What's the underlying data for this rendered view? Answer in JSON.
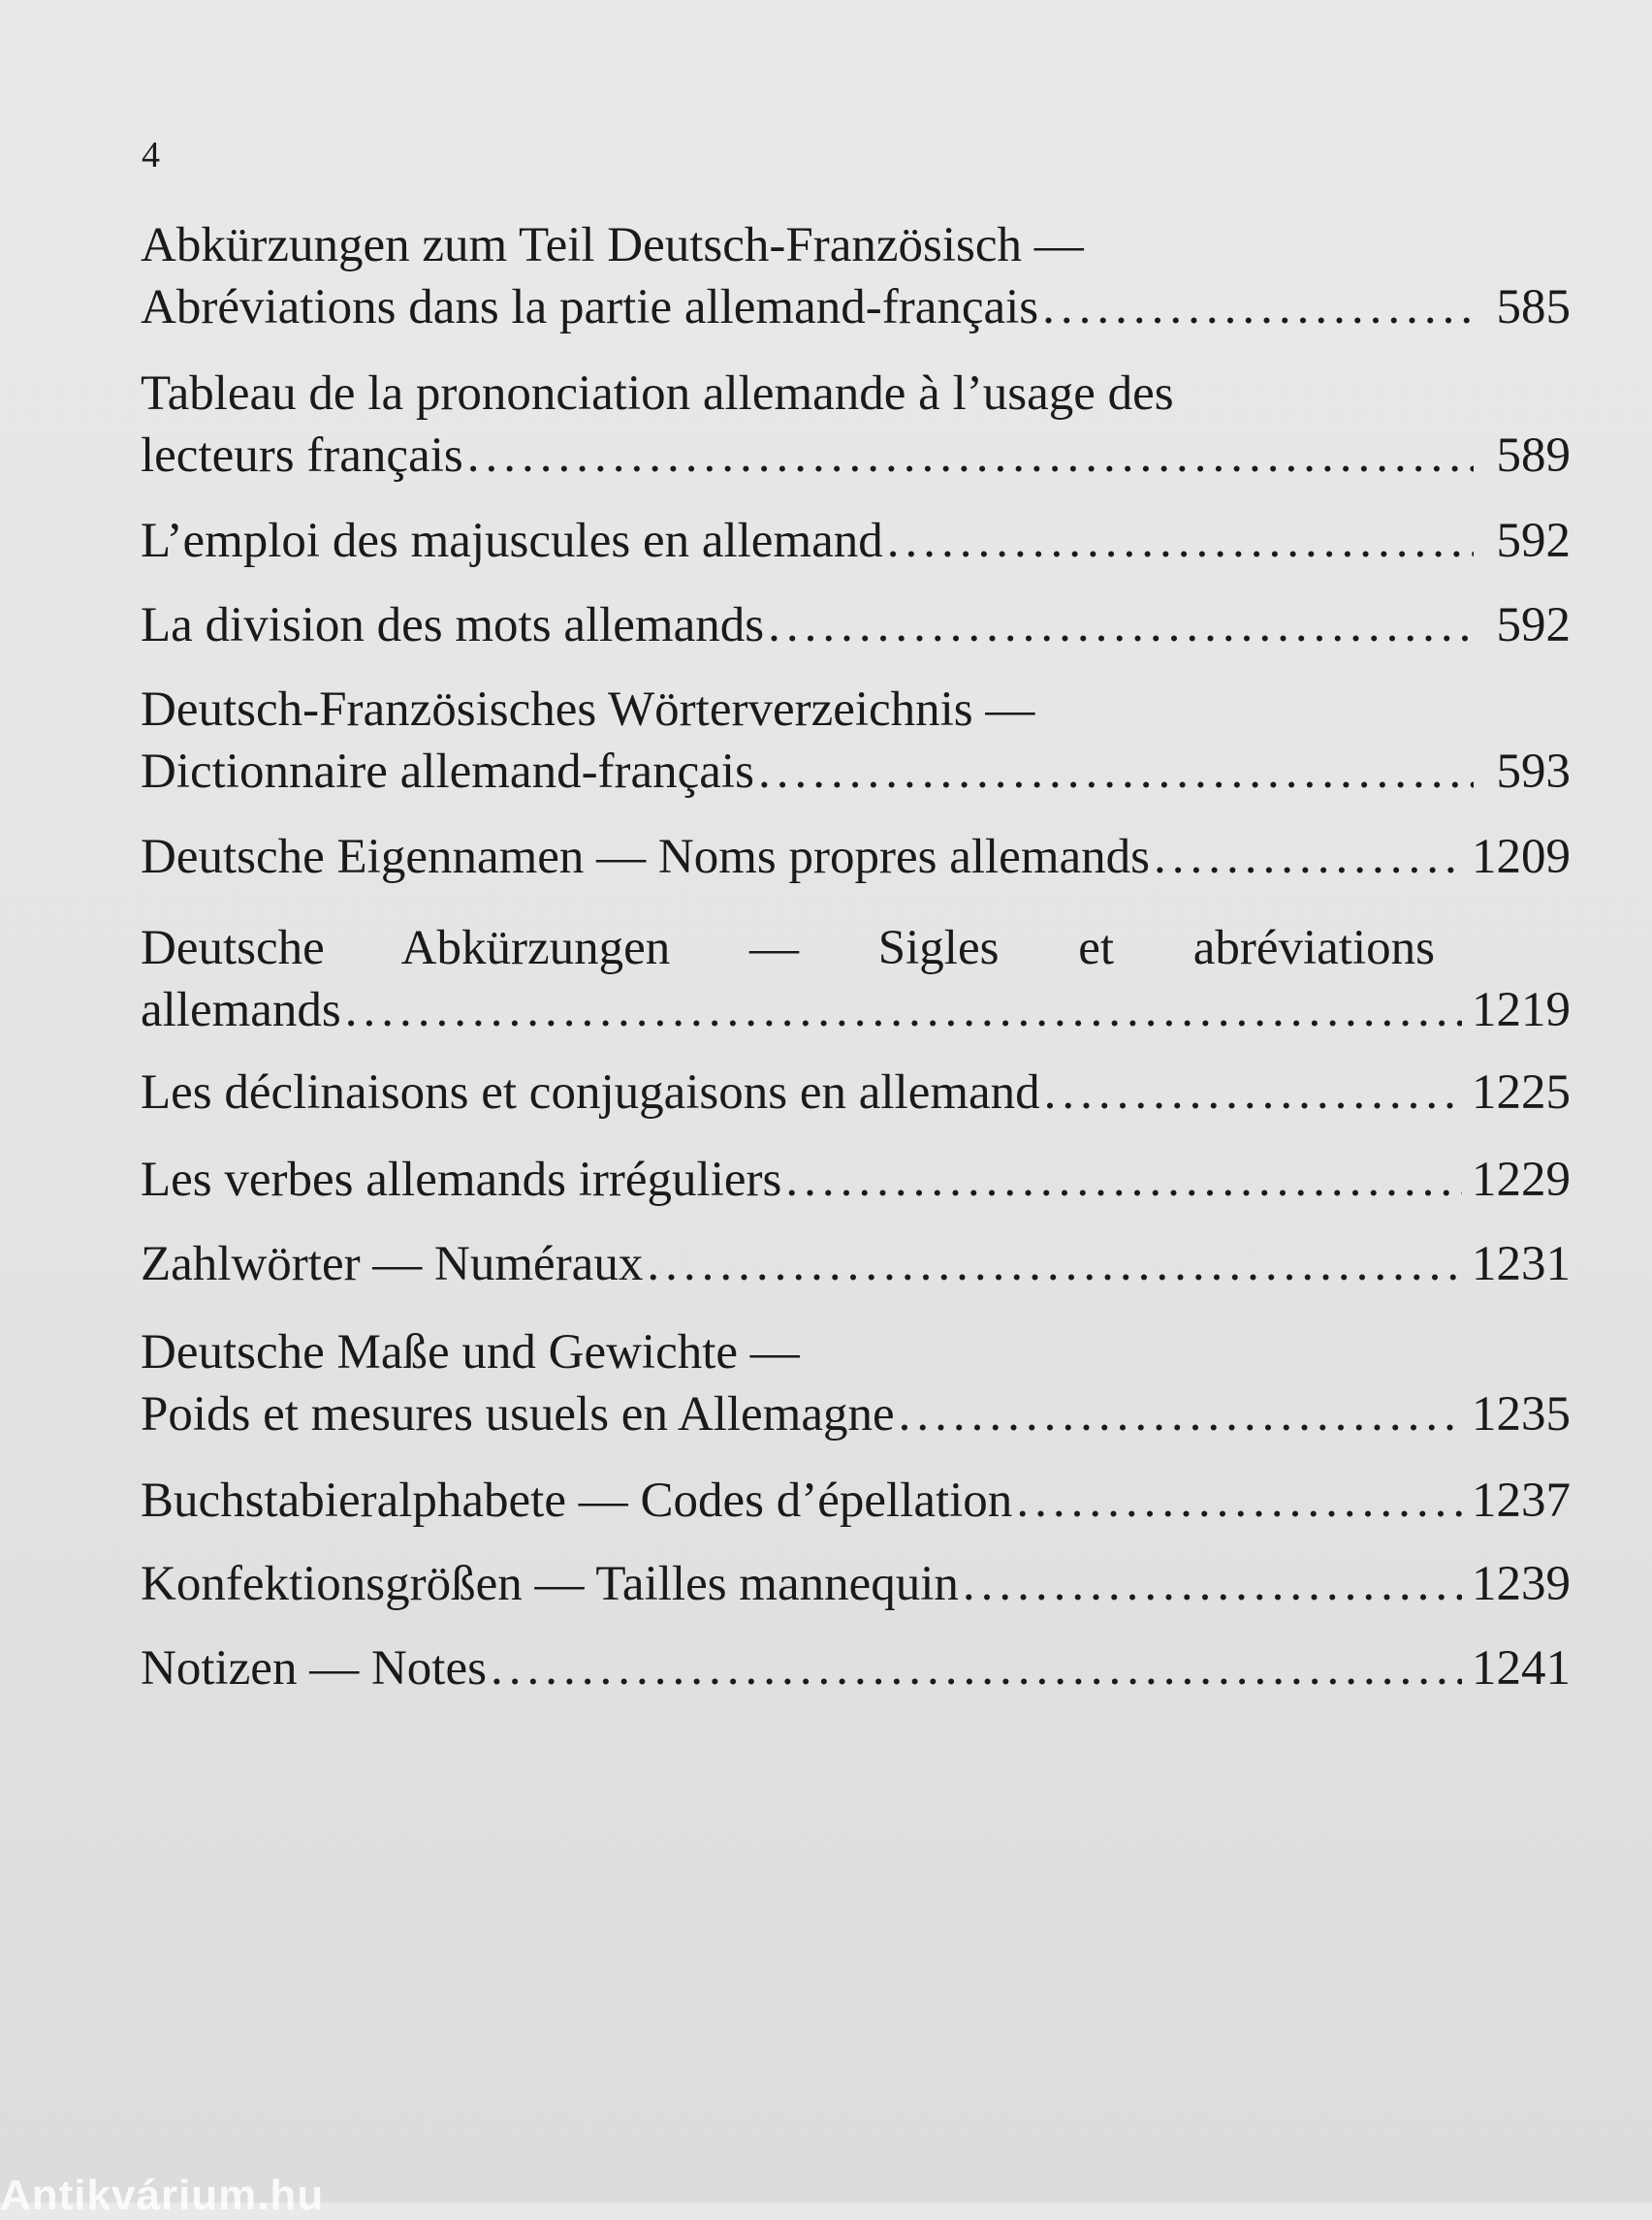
{
  "page_number": "4",
  "entries": [
    {
      "lines": [
        "Abkürzungen zum Teil Deutsch-Französisch —",
        "Abréviations dans la partie allemand-français"
      ],
      "page": "585"
    },
    {
      "lines": [
        "Tableau de la prononciation allemande à l’usage des",
        "lecteurs français"
      ],
      "page": "589"
    },
    {
      "lines": [
        "L’emploi des majuscules en allemand"
      ],
      "page": "592"
    },
    {
      "lines": [
        "La division des mots allemands"
      ],
      "page": "592"
    },
    {
      "lines": [
        "Deutsch-Französisches Wörterverzeichnis —",
        "Dictionnaire allemand-français"
      ],
      "page": "593"
    },
    {
      "lines": [
        "Deutsche Eigennamen — Noms propres allemands"
      ],
      "page": "1209"
    },
    {
      "lines": [
        "Deutsche Abkürzungen — Sigles et abréviations",
        "allemands"
      ],
      "page": "1219"
    },
    {
      "lines": [
        "Les déclinaisons et conjugaisons en allemand"
      ],
      "page": "1225"
    },
    {
      "lines": [
        "Les verbes allemands irréguliers"
      ],
      "page": "1229"
    },
    {
      "lines": [
        "Zahlwörter — Numéraux"
      ],
      "page": "1231"
    },
    {
      "lines": [
        "Deutsche Maße und Gewichte —",
        "Poids et mesures usuels en Allemagne"
      ],
      "page": "1235"
    },
    {
      "lines": [
        "Buchstabieralphabete — Codes d’épellation"
      ],
      "page": "1237"
    },
    {
      "lines": [
        "Konfektionsgrößen — Tailles mannequin"
      ],
      "page": "1239"
    },
    {
      "lines": [
        "Notizen — Notes"
      ],
      "page": "1241"
    }
  ],
  "watermark": "Antikvárium.hu"
}
